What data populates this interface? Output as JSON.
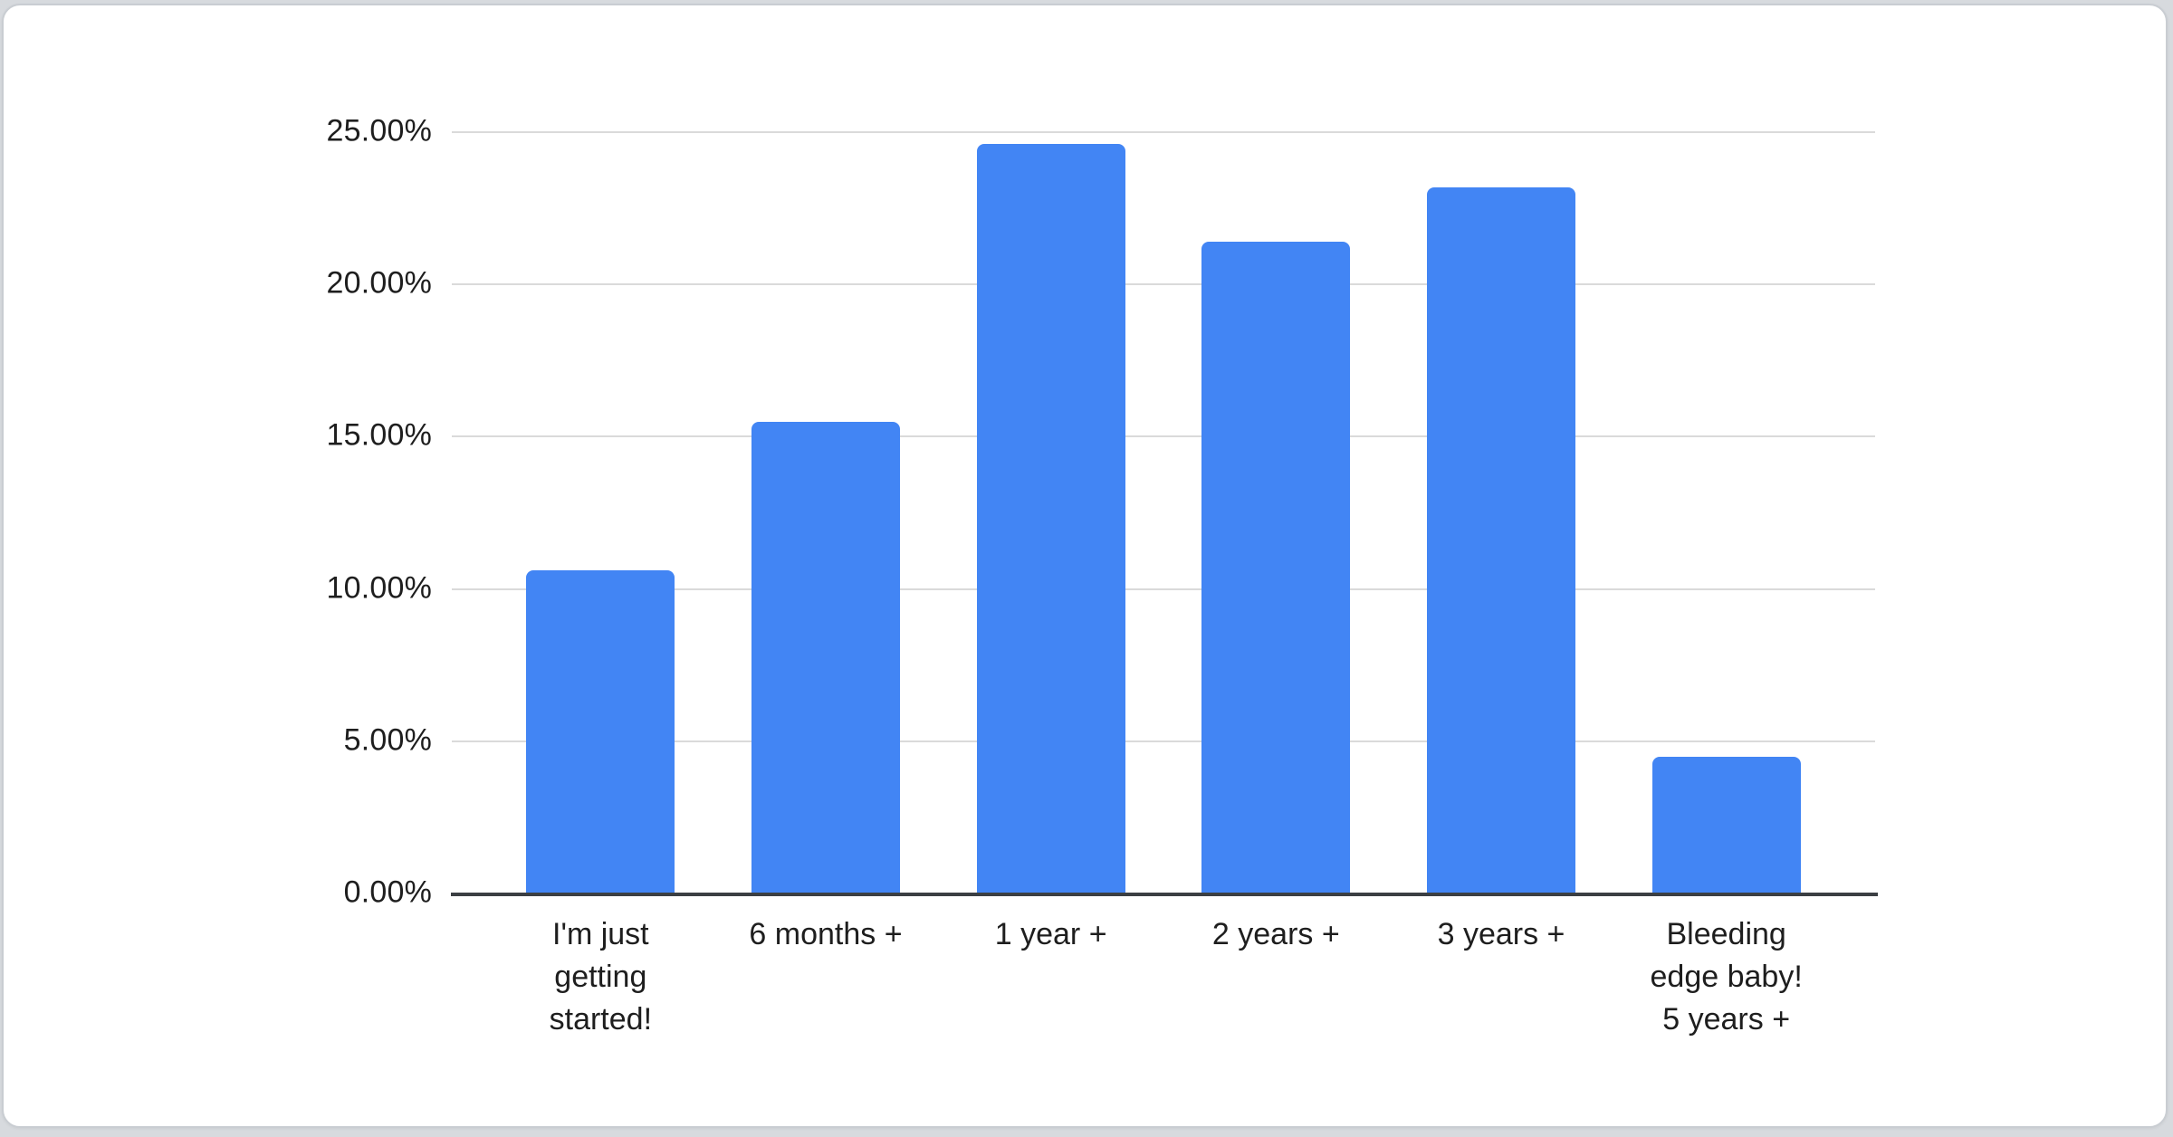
{
  "page": {
    "background_color": "#d7dade",
    "card_background_color": "#ffffff",
    "card_border_color": "#c9cdd2"
  },
  "chart_data": {
    "type": "bar",
    "title": "",
    "categories": [
      "I'm just\ngetting\nstarted!",
      "6 months +",
      "1 year +",
      "2 years +",
      "3 years +",
      "Bleeding\nedge baby!\n5 years +"
    ],
    "values": [
      10.6,
      15.5,
      24.6,
      21.4,
      23.2,
      4.5
    ],
    "value_unit": "%",
    "xlabel": "",
    "ylabel": "",
    "ylim": [
      0,
      25
    ],
    "yticks": [
      {
        "value": 0,
        "label": "0.00%"
      },
      {
        "value": 5,
        "label": "5.00%"
      },
      {
        "value": 10,
        "label": "10.00%"
      },
      {
        "value": 15,
        "label": "15.00%"
      },
      {
        "value": 20,
        "label": "20.00%"
      },
      {
        "value": 25,
        "label": "25.00%"
      }
    ],
    "grid": true,
    "legend": "none",
    "bar_color": "#4285f4",
    "gridline_color": "#dadada",
    "axis_line_color": "#3b3f43",
    "label_color": "#1e1e1e"
  }
}
